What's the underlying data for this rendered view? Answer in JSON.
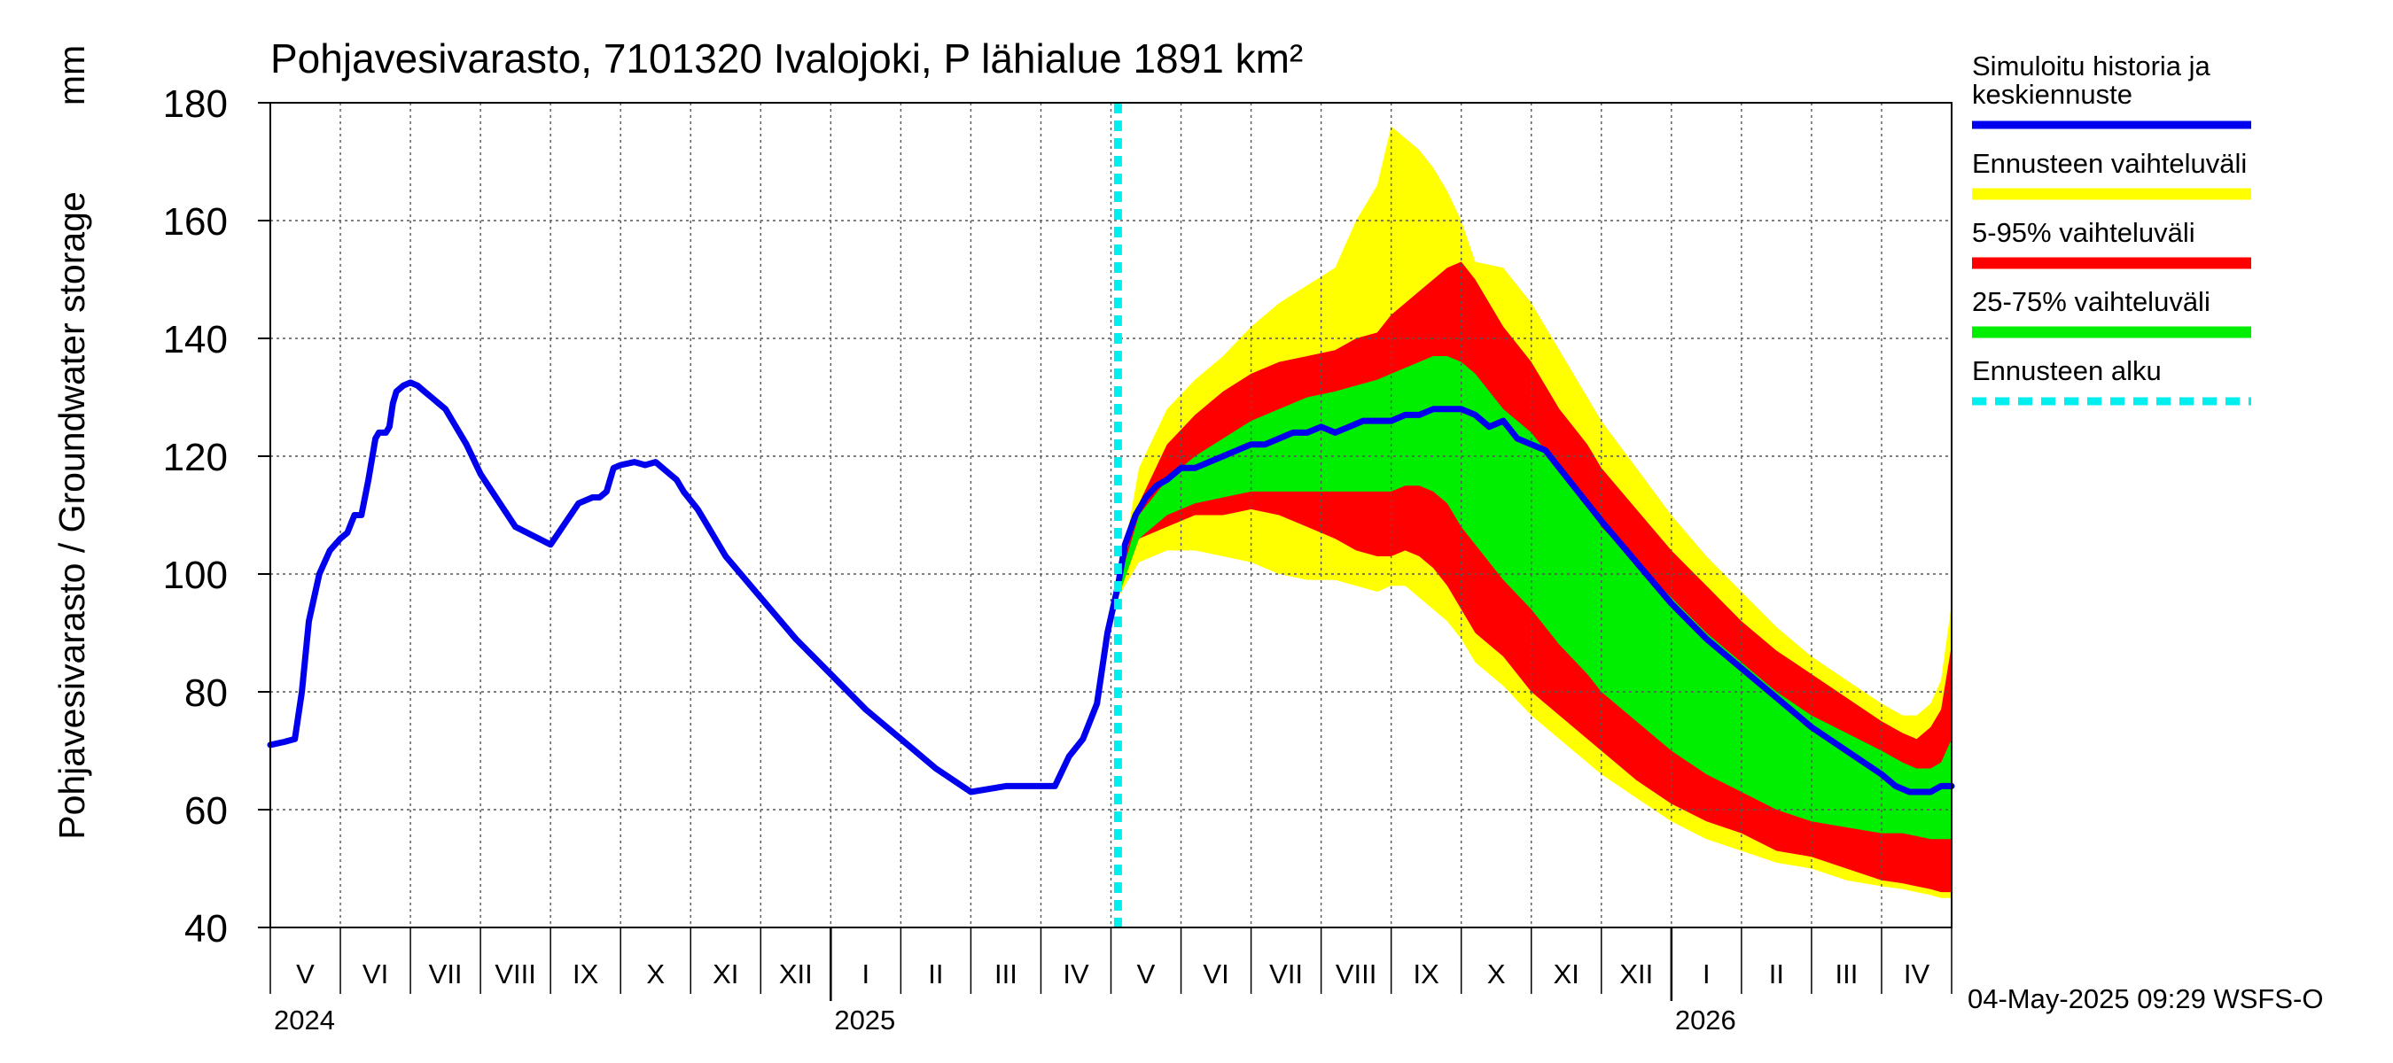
{
  "chart_data": {
    "type": "area",
    "title": "Pohjavesivarasto, 7101320 Ivalojoki, P lähialue 1891 km²",
    "ylabel": "Pohjavesivarasto / Groundwater storage",
    "yunit": "mm",
    "ylim": [
      40,
      180
    ],
    "yticks": [
      40,
      60,
      80,
      100,
      120,
      140,
      160,
      180
    ],
    "xlim": [
      0,
      24
    ],
    "x_unit": "months since 2024-05-01",
    "grid": true,
    "month_labels": [
      "V",
      "VI",
      "VII",
      "VIII",
      "IX",
      "X",
      "XI",
      "XII",
      "I",
      "II",
      "III",
      "IV",
      "V",
      "VI",
      "VII",
      "VIII",
      "IX",
      "X",
      "XI",
      "XII",
      "I",
      "II",
      "III",
      "IV"
    ],
    "year_labels": [
      {
        "label": "2024",
        "x": 0
      },
      {
        "label": "2025",
        "x": 8
      },
      {
        "label": "2026",
        "x": 20
      }
    ],
    "forecast_start_x": 12.1,
    "timestamp": "04-May-2025 09:29 WSFS-O",
    "legend": [
      {
        "key": "history",
        "label": "Simuloitu historia ja keskiennuste",
        "color": "#0000ee",
        "style": "solid"
      },
      {
        "key": "range_full",
        "label": "Ennusteen vaihteluväli",
        "color": "#ffff00",
        "style": "solid"
      },
      {
        "key": "range_90",
        "label": "5-95% vaihteluväli",
        "color": "#ff0000",
        "style": "solid"
      },
      {
        "key": "range_50",
        "label": "25-75% vaihteluväli",
        "color": "#00ee00",
        "style": "solid"
      },
      {
        "key": "forecast_start",
        "label": "Ennusteen alku",
        "color": "#00eeee",
        "style": "dashed"
      }
    ],
    "series": [
      {
        "name": "Simuloitu historia ja keskiennuste",
        "x": [
          0,
          0.2,
          0.35,
          0.45,
          0.55,
          0.7,
          0.85,
          1.0,
          1.1,
          1.2,
          1.3,
          1.4,
          1.5,
          1.55,
          1.65,
          1.7,
          1.75,
          1.8,
          1.9,
          2.0,
          2.1,
          2.2,
          2.3,
          2.4,
          2.5,
          2.6,
          2.8,
          3.0,
          3.5,
          4.0,
          4.4,
          4.6,
          4.7,
          4.8,
          4.9,
          5.0,
          5.2,
          5.35,
          5.5,
          5.6,
          5.8,
          5.9,
          6.1,
          6.2,
          6.5,
          7.0,
          7.5,
          8.0,
          8.5,
          9.0,
          9.5,
          10.0,
          10.5,
          11.0,
          11.2,
          11.4,
          11.6,
          11.8,
          11.95,
          12.1,
          12.2,
          12.35,
          12.5,
          12.65,
          12.8,
          12.9,
          13.0,
          13.2,
          13.4,
          13.6,
          13.8,
          14.0,
          14.2,
          14.4,
          14.6,
          14.8,
          15.0,
          15.2,
          15.4,
          15.6,
          15.8,
          16.0,
          16.2,
          16.4,
          16.6,
          16.8,
          17.0,
          17.2,
          17.4,
          17.6,
          17.8,
          18.0,
          18.2,
          18.4,
          18.6,
          18.8,
          19.0,
          19.5,
          20.0,
          20.5,
          21.0,
          21.5,
          22.0,
          22.5,
          23.0,
          23.2,
          23.4,
          23.5,
          23.7,
          23.85,
          24.0
        ],
        "values": [
          71,
          71.5,
          72,
          80,
          92,
          100,
          104,
          106,
          107,
          110,
          110,
          116,
          123,
          124,
          124,
          125,
          129,
          131,
          132,
          132.5,
          132,
          131,
          130,
          129,
          128,
          126,
          122,
          117,
          108,
          105,
          112,
          113,
          113,
          114,
          118,
          118.5,
          119,
          118.5,
          119,
          118,
          116,
          114,
          111,
          109,
          103,
          96,
          89,
          83,
          77,
          72,
          67,
          63,
          64,
          64,
          64,
          69,
          72,
          78,
          90,
          98,
          105,
          110,
          113,
          115,
          116,
          117,
          118,
          118,
          119,
          120,
          121,
          122,
          122,
          123,
          124,
          124,
          125,
          124,
          125,
          126,
          126,
          126,
          127,
          127,
          128,
          128,
          128,
          127,
          125,
          126,
          123,
          122,
          121,
          118,
          115,
          112,
          109,
          102,
          95,
          89,
          84,
          79,
          74,
          70,
          66,
          64,
          63,
          63,
          63,
          64,
          64
        ]
      },
      {
        "name": "Ennusteen vaihteluväli",
        "x": [
          12.1,
          12.4,
          12.8,
          13.2,
          13.6,
          14.0,
          14.4,
          14.8,
          15.2,
          15.5,
          15.8,
          16.0,
          16.2,
          16.4,
          16.6,
          16.8,
          17.0,
          17.2,
          17.6,
          18.0,
          18.4,
          18.8,
          19.0,
          19.5,
          20.0,
          20.5,
          21.0,
          21.5,
          22.0,
          22.5,
          23.0,
          23.3,
          23.5,
          23.7,
          23.85,
          24.0
        ],
        "upper": [
          98,
          118,
          128,
          133,
          137,
          142,
          146,
          149,
          152,
          160,
          166,
          176,
          174,
          172,
          169,
          165,
          160,
          153,
          152,
          146,
          138,
          130,
          126,
          118,
          110,
          103,
          97,
          91,
          86,
          82,
          78,
          76,
          76,
          78,
          82,
          95
        ],
        "lower": [
          96,
          102,
          104,
          104,
          103,
          102,
          100,
          99,
          99,
          98,
          97,
          98,
          98,
          96,
          94,
          92,
          89,
          85,
          81,
          76,
          72,
          68,
          66,
          62,
          58,
          55,
          53,
          51,
          50,
          48,
          47,
          46.5,
          46,
          45.5,
          45,
          45
        ]
      },
      {
        "name": "5-95% vaihteluväli",
        "x": [
          12.1,
          12.4,
          12.8,
          13.2,
          13.6,
          14.0,
          14.4,
          14.8,
          15.2,
          15.5,
          15.8,
          16.0,
          16.2,
          16.4,
          16.6,
          16.8,
          17.0,
          17.2,
          17.6,
          18.0,
          18.4,
          18.8,
          19.0,
          19.5,
          20.0,
          20.5,
          21.0,
          21.5,
          22.0,
          22.5,
          23.0,
          23.3,
          23.5,
          23.7,
          23.85,
          24.0
        ],
        "upper": [
          98,
          112,
          122,
          127,
          131,
          134,
          136,
          137,
          138,
          140,
          141,
          144,
          146,
          148,
          150,
          152,
          153,
          150,
          142,
          136,
          128,
          122,
          118,
          111,
          104,
          98,
          92,
          87,
          83,
          79,
          75,
          73,
          72,
          74,
          77,
          88
        ],
        "lower": [
          96,
          106,
          108,
          110,
          110,
          111,
          110,
          108,
          106,
          104,
          103,
          103,
          104,
          103,
          101,
          98,
          94,
          90,
          86,
          80,
          76,
          72,
          70,
          65,
          61,
          58,
          56,
          53,
          52,
          50,
          48,
          47.5,
          47,
          46.5,
          46,
          46
        ]
      },
      {
        "name": "25-75% vaihteluväli",
        "x": [
          12.1,
          12.4,
          12.8,
          13.2,
          13.6,
          14.0,
          14.4,
          14.8,
          15.2,
          15.5,
          15.8,
          16.0,
          16.2,
          16.4,
          16.6,
          16.8,
          17.0,
          17.2,
          17.6,
          18.0,
          18.4,
          18.8,
          19.0,
          19.5,
          20.0,
          20.5,
          21.0,
          21.5,
          22.0,
          22.5,
          23.0,
          23.3,
          23.5,
          23.7,
          23.85,
          24.0
        ],
        "upper": [
          98,
          110,
          116,
          120,
          123,
          126,
          128,
          130,
          131,
          132,
          133,
          134,
          135,
          136,
          137,
          137,
          136,
          134,
          128,
          124,
          118,
          112,
          108,
          102,
          96,
          90,
          85,
          80,
          76,
          73,
          70,
          68,
          67,
          67,
          68,
          72
        ],
        "lower": [
          96,
          106,
          110,
          112,
          113,
          114,
          114,
          114,
          114,
          114,
          114,
          114,
          115,
          115,
          114,
          112,
          108,
          105,
          99,
          94,
          88,
          83,
          80,
          75,
          70,
          66,
          63,
          60,
          58,
          57,
          56,
          56,
          55.5,
          55,
          55,
          55
        ]
      }
    ]
  }
}
